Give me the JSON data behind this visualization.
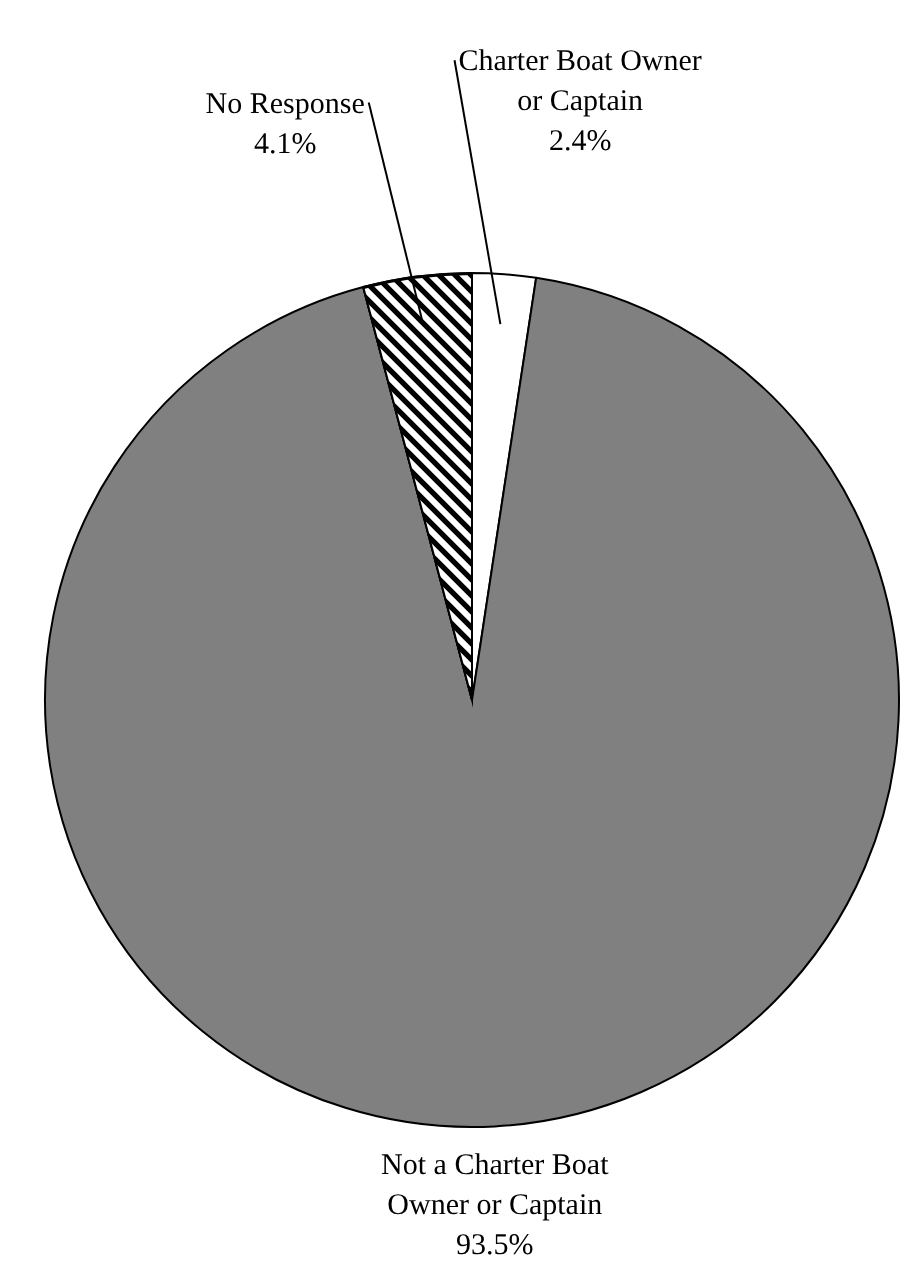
{
  "chart_data": {
    "type": "pie",
    "categories": [
      "Charter Boat Owner or Captain",
      "Not a Charter Boat Owner or Captain",
      "No Response"
    ],
    "values": [
      2.4,
      93.5,
      4.1
    ],
    "colors": [
      "#ffffff",
      "#808080",
      "#000000"
    ],
    "value_labels": [
      "2.4%",
      "93.5%",
      "4.1%"
    ],
    "legend": false
  }
}
